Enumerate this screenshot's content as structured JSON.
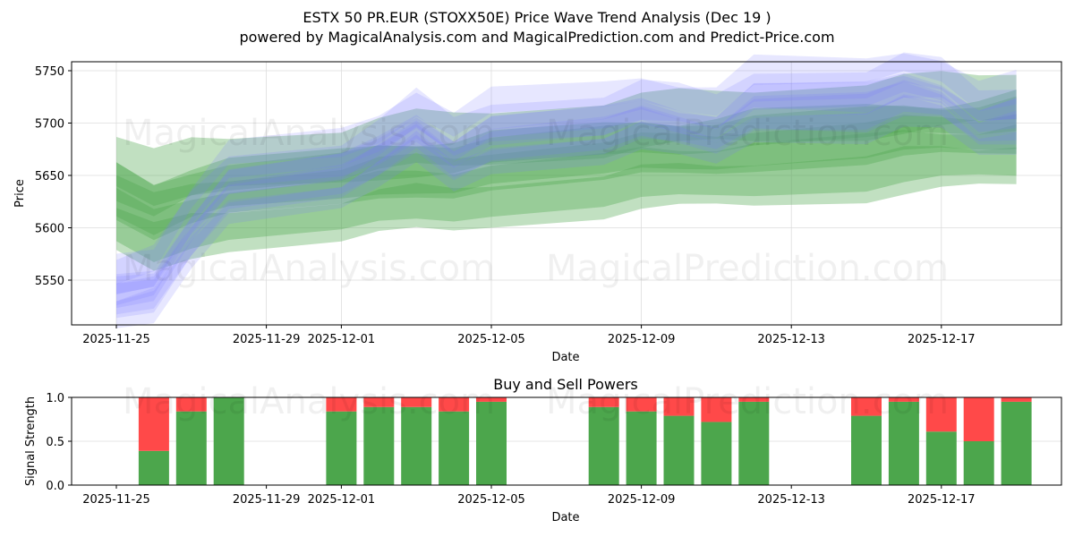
{
  "header": {
    "title": "ESTX 50 PR.EUR (STOXX50E) Price Wave Trend Analysis (Dec 19 )",
    "subtitle": "powered by MagicalAnalysis.com and MagicalPrediction.com and Predict-Price.com"
  },
  "watermarks": [
    "MagicalAnalysis.com",
    "MagicalPrediction.com"
  ],
  "colors": {
    "buy": "#4ca64c",
    "sell": "#ff4949",
    "wave_blue": "#7b7bff",
    "wave_green": "#4ca64c",
    "grid": "#dddddd"
  },
  "chart_data": [
    {
      "type": "area",
      "title": "",
      "xlabel": "Date",
      "ylabel": "Price",
      "ylim": [
        5507,
        5758
      ],
      "yticks": [
        5550,
        5600,
        5650,
        5700,
        5750
      ],
      "xticks": [
        "2025-11-25",
        "2025-11-29",
        "2025-12-01",
        "2025-12-05",
        "2025-12-09",
        "2025-12-13",
        "2025-12-17"
      ],
      "grid": true,
      "x": [
        "2025-11-25",
        "2025-11-26",
        "2025-11-27",
        "2025-11-28",
        "2025-12-01",
        "2025-12-02",
        "2025-12-03",
        "2025-12-04",
        "2025-12-05",
        "2025-12-08",
        "2025-12-09",
        "2025-12-10",
        "2025-12-11",
        "2025-12-12",
        "2025-12-15",
        "2025-12-16",
        "2025-12-17",
        "2025-12-18",
        "2025-12-19"
      ],
      "series": [
        {
          "name": "price wave bands (blue)",
          "values": [
            5535,
            5545,
            5600,
            5640,
            5650,
            5668,
            5695,
            5672,
            5690,
            5695,
            5705,
            5700,
            5695,
            5720,
            5718,
            5730,
            5725,
            5700,
            5705
          ]
        },
        {
          "name": "trend wave bands (green)",
          "values": [
            5625,
            5610,
            5625,
            5630,
            5635,
            5642,
            5648,
            5650,
            5655,
            5660,
            5665,
            5668,
            5672,
            5675,
            5678,
            5682,
            5685,
            5688,
            5692
          ]
        }
      ]
    },
    {
      "type": "bar",
      "title": "Buy and Sell Powers",
      "xlabel": "Date",
      "ylabel": "Signal Strength",
      "ylim": [
        0,
        1.0
      ],
      "yticks": [
        "0.0",
        "0.5",
        "1.0"
      ],
      "xticks": [
        "2025-11-25",
        "2025-11-29",
        "2025-12-01",
        "2025-12-05",
        "2025-12-09",
        "2025-12-13",
        "2025-12-17"
      ],
      "categories": [
        "2025-11-26",
        "2025-11-27",
        "2025-11-28",
        "2025-12-01",
        "2025-12-02",
        "2025-12-03",
        "2025-12-04",
        "2025-12-05",
        "2025-12-08",
        "2025-12-09",
        "2025-12-10",
        "2025-12-11",
        "2025-12-12",
        "2025-12-15",
        "2025-12-16",
        "2025-12-17",
        "2025-12-18",
        "2025-12-19"
      ],
      "series": [
        {
          "name": "Buy",
          "values": [
            0.39,
            0.84,
            1.0,
            0.84,
            0.89,
            0.89,
            0.84,
            0.95,
            0.89,
            0.84,
            0.79,
            0.72,
            0.95,
            0.79,
            0.95,
            0.61,
            0.5,
            0.95
          ]
        },
        {
          "name": "Sell",
          "values": [
            0.61,
            0.16,
            0.0,
            0.16,
            0.11,
            0.11,
            0.16,
            0.05,
            0.11,
            0.16,
            0.21,
            0.28,
            0.05,
            0.21,
            0.05,
            0.39,
            0.5,
            0.05
          ]
        }
      ]
    }
  ]
}
